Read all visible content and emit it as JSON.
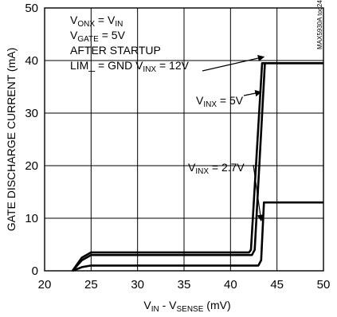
{
  "chart_data": {
    "type": "line",
    "title": "",
    "xlabel": {
      "main": "V",
      "sub1": "IN",
      "mid": " - V",
      "sub2": "SENSE",
      "tail": " (mV)"
    },
    "ylabel": "GATE DISCHARGE CURRENT (mA)",
    "xlim": [
      20,
      50
    ],
    "ylim": [
      0,
      50
    ],
    "x_ticks": [
      20,
      25,
      30,
      35,
      40,
      45,
      50
    ],
    "y_ticks": [
      0,
      10,
      20,
      30,
      40,
      50
    ],
    "grid": true,
    "legend": "none",
    "figure_id": "MAX5930A toc24",
    "conditions": [
      {
        "main": "V",
        "sub1": "ONX",
        "mid": " = V",
        "sub2": "IN"
      },
      {
        "main": "V",
        "sub1": "GATE",
        "mid": " = 5V",
        "sub2": ""
      },
      {
        "main": "AFTER STARTUP",
        "sub1": "",
        "mid": "",
        "sub2": ""
      },
      {
        "main": "LIM_ = GND V",
        "sub1": "INX",
        "mid": " = 12V",
        "sub2": ""
      }
    ],
    "series": [
      {
        "name": "V_INX = 12V",
        "label": {
          "main": "",
          "sub1": "",
          "mid": "",
          "sub2": ""
        },
        "x": [
          23.0,
          24.0,
          25.0,
          30.0,
          35.0,
          40.0,
          42.0,
          42.2,
          43.4,
          43.8,
          44.5,
          46,
          48,
          50
        ],
        "y": [
          0,
          2.5,
          3.5,
          3.5,
          3.5,
          3.5,
          3.5,
          4.0,
          39.5,
          39.5,
          39.5,
          39.5,
          39.5,
          39.5
        ]
      },
      {
        "name": "V_INX = 5V",
        "label": {
          "main": "V",
          "sub1": "INX",
          "mid": " = 5V",
          "sub2": ""
        },
        "x": [
          23.0,
          24.0,
          25.0,
          30.0,
          35.0,
          40.0,
          42.3,
          42.6,
          43.7,
          44.0,
          44.5,
          46,
          48,
          50
        ],
        "y": [
          0,
          2.0,
          3.0,
          3.0,
          3.0,
          3.0,
          3.0,
          4.0,
          39.5,
          39.5,
          39.5,
          39.5,
          39.5,
          39.5
        ]
      },
      {
        "name": "V_INX = 2.7V",
        "label": {
          "main": "V",
          "sub1": "INX",
          "mid": " = 2.7V",
          "sub2": ""
        },
        "x": [
          23.0,
          24.0,
          25.0,
          30.0,
          35.0,
          40.0,
          43.0,
          43.3,
          43.6,
          44.2,
          46,
          48,
          50
        ],
        "y": [
          0,
          0.7,
          1.0,
          1.0,
          1.0,
          1.0,
          1.0,
          2.0,
          13.0,
          13.0,
          13.0,
          13.0,
          13.0
        ]
      }
    ]
  }
}
